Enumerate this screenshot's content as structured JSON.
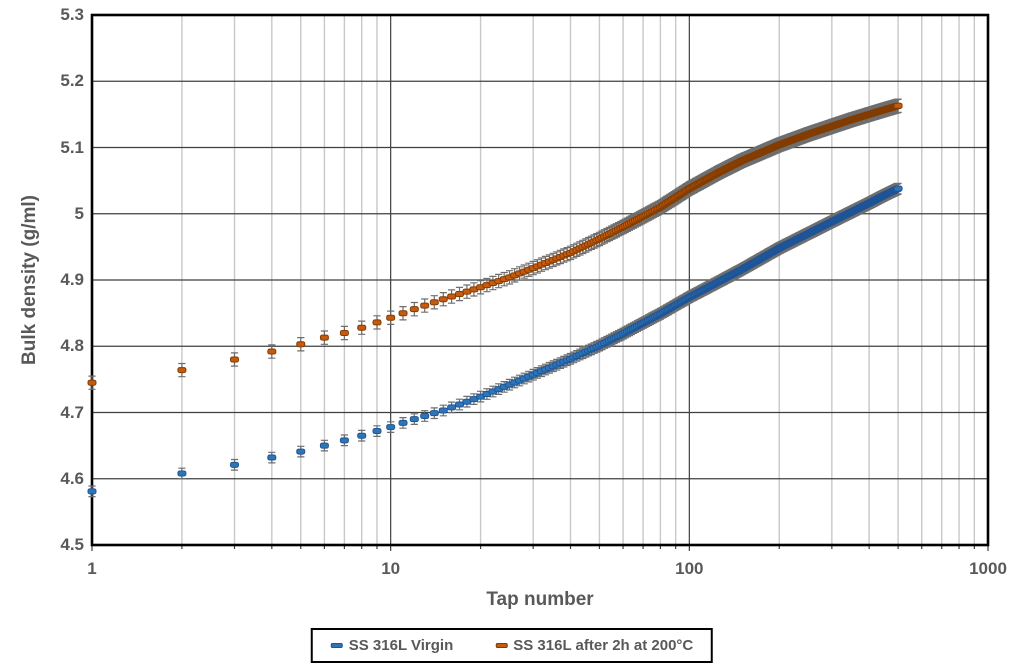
{
  "chart_data": {
    "type": "scatter",
    "title": "",
    "xlabel": "Tap number",
    "ylabel": "Bulk density (g/ml)",
    "x_scale": "log",
    "xlim": [
      1,
      1000
    ],
    "ylim": [
      4.5,
      5.3
    ],
    "x_ticks": [
      1,
      10,
      100,
      1000
    ],
    "x_tick_labels": [
      "1",
      "10",
      "100",
      "1000"
    ],
    "y_ticks": [
      4.5,
      4.6,
      4.7,
      4.8,
      4.9,
      5,
      5.1,
      5.2,
      5.3
    ],
    "y_tick_labels": [
      "4.5",
      "4.6",
      "4.7",
      "4.8",
      "4.9",
      "5",
      "5.1",
      "5.2",
      "5.3"
    ],
    "grid": {
      "horizontal_major": true,
      "vertical_log_minor": true,
      "vertical_log_major": true
    },
    "legend_position": "bottom",
    "axis_text_color": "#595959",
    "error_bar_color": "#6E6E6E",
    "minor_grid_color": "#C8C8C8",
    "major_grid_color": "#3F3F3F",
    "plot_border_color": "#000000",
    "tap_range": [
      1,
      500
    ],
    "marker_style": "horizontal dash with error bars, one marker per tap from 1 to 500",
    "series": [
      {
        "name": "SS 316L Virgin",
        "marker_color": "#2E75B6",
        "marker_edge_color": "#1F5597",
        "error_bar": 0.008,
        "points": [
          [
            1,
            4.581
          ],
          [
            2,
            4.608
          ],
          [
            3,
            4.621
          ],
          [
            4,
            4.632
          ],
          [
            5,
            4.641
          ],
          [
            6,
            4.65
          ],
          [
            7,
            4.658
          ],
          [
            8,
            4.665
          ],
          [
            9,
            4.672
          ],
          [
            10,
            4.678
          ],
          [
            12,
            4.69
          ],
          [
            15,
            4.703
          ],
          [
            20,
            4.724
          ],
          [
            25,
            4.742
          ],
          [
            30,
            4.757
          ],
          [
            40,
            4.781
          ],
          [
            50,
            4.801
          ],
          [
            60,
            4.819
          ],
          [
            80,
            4.849
          ],
          [
            100,
            4.874
          ],
          [
            125,
            4.897
          ],
          [
            150,
            4.916
          ],
          [
            200,
            4.948
          ],
          [
            250,
            4.97
          ],
          [
            300,
            4.988
          ],
          [
            350,
            5.003
          ],
          [
            400,
            5.016
          ],
          [
            450,
            5.028
          ],
          [
            500,
            5.038
          ]
        ]
      },
      {
        "name": "SS 316L after 2h at 200°C",
        "marker_color": "#C55A11",
        "marker_edge_color": "#833C00",
        "error_bar": 0.01,
        "points": [
          [
            1,
            4.745
          ],
          [
            2,
            4.764
          ],
          [
            3,
            4.78
          ],
          [
            4,
            4.792
          ],
          [
            5,
            4.803
          ],
          [
            6,
            4.813
          ],
          [
            7,
            4.82
          ],
          [
            8,
            4.828
          ],
          [
            9,
            4.836
          ],
          [
            10,
            4.843
          ],
          [
            12,
            4.856
          ],
          [
            15,
            4.871
          ],
          [
            20,
            4.889
          ],
          [
            25,
            4.904
          ],
          [
            30,
            4.918
          ],
          [
            40,
            4.941
          ],
          [
            50,
            4.962
          ],
          [
            60,
            4.98
          ],
          [
            80,
            5.01
          ],
          [
            100,
            5.038
          ],
          [
            125,
            5.062
          ],
          [
            150,
            5.08
          ],
          [
            200,
            5.104
          ],
          [
            250,
            5.12
          ],
          [
            300,
            5.132
          ],
          [
            350,
            5.142
          ],
          [
            400,
            5.15
          ],
          [
            450,
            5.157
          ],
          [
            500,
            5.163
          ]
        ]
      }
    ]
  }
}
